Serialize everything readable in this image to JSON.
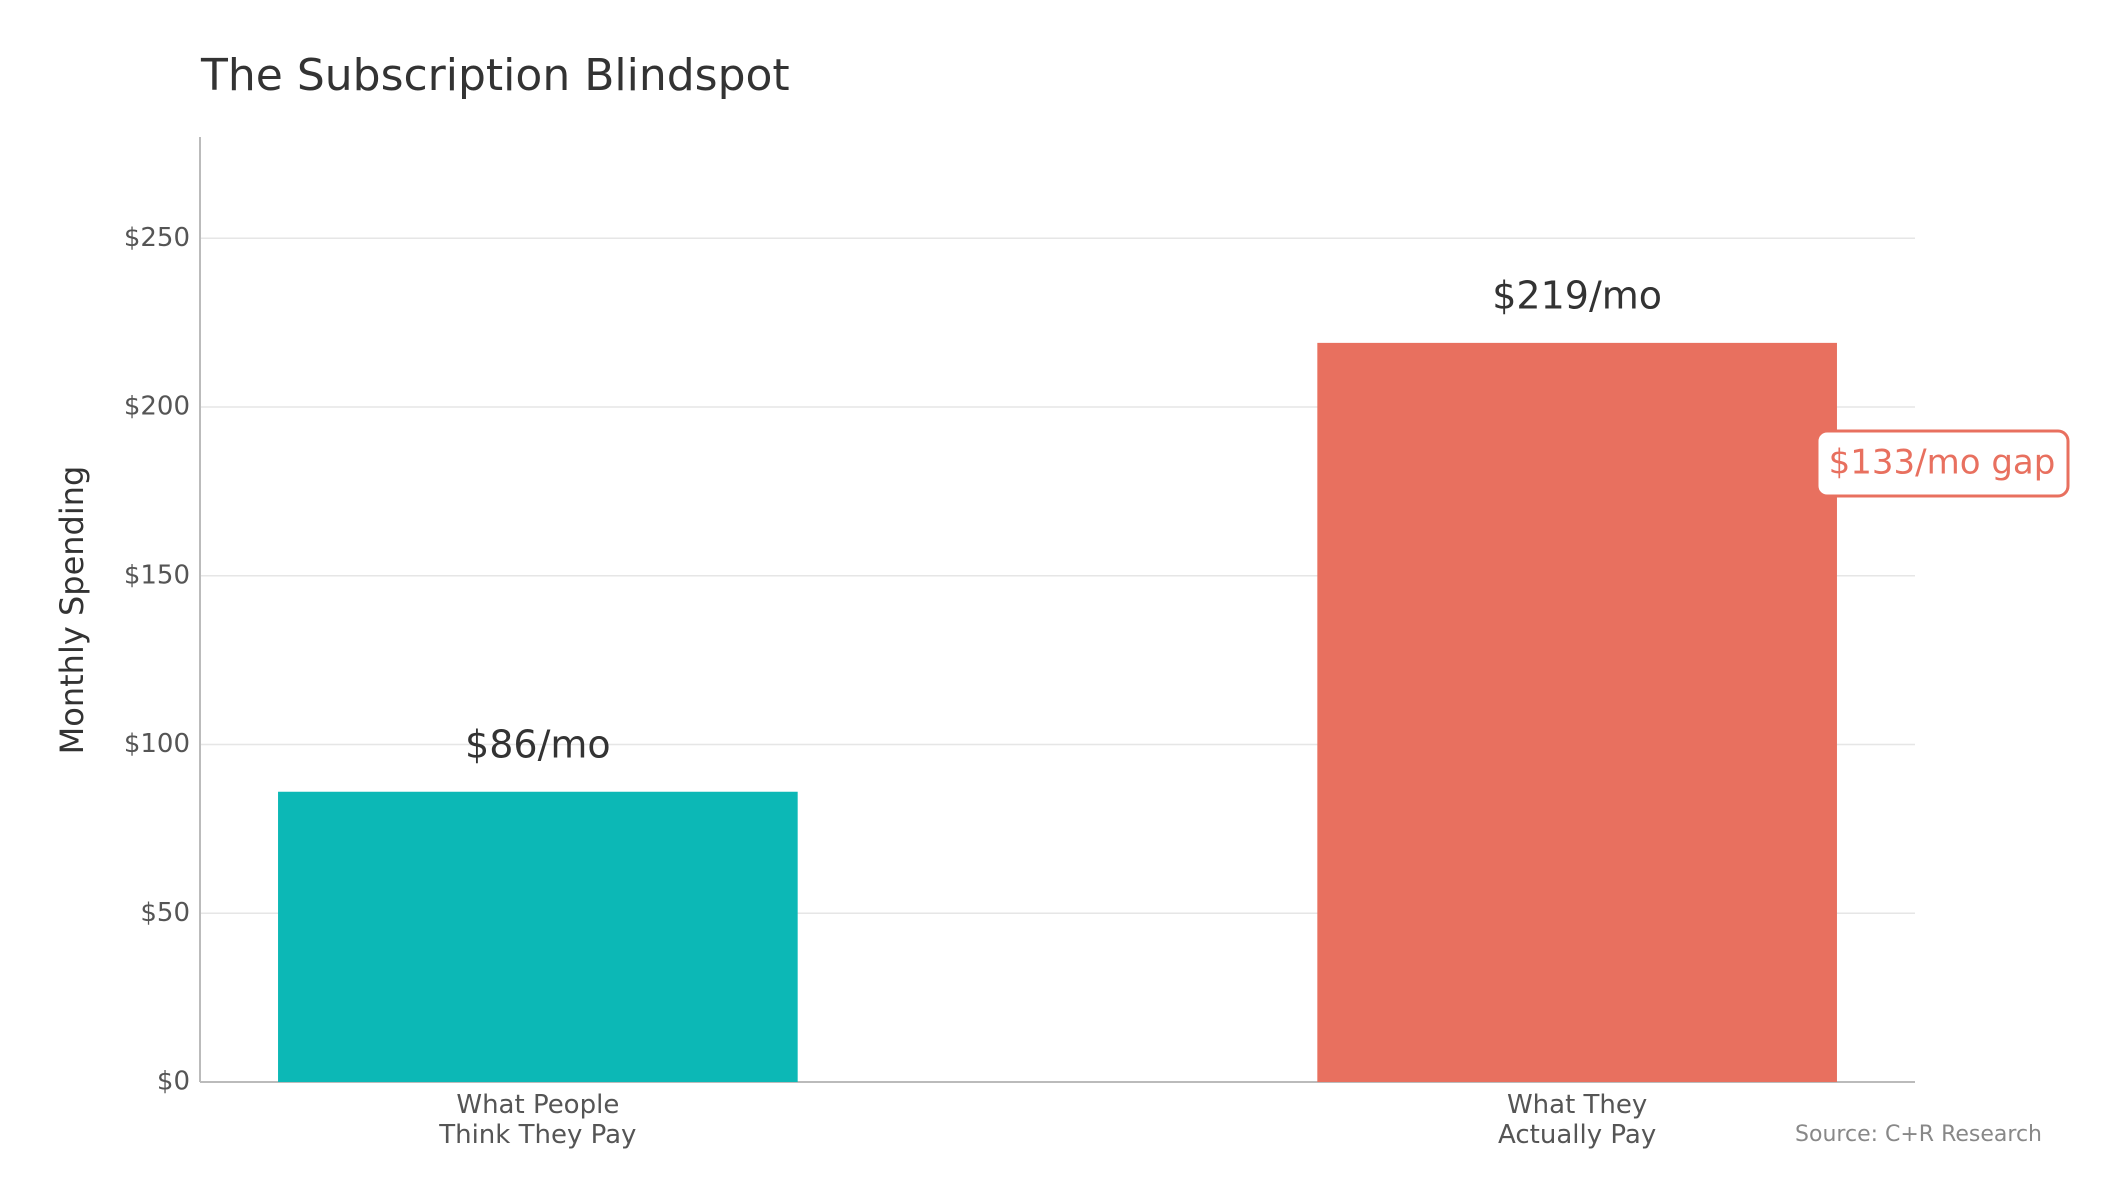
{
  "chart_data": {
    "type": "bar",
    "title": "The Subscription Blindspot",
    "y_label": "Monthly Spending",
    "categories": [
      "What People\nThink They Pay",
      "What They\nActually Pay"
    ],
    "values": [
      86,
      219
    ],
    "value_labels": [
      "$86/mo",
      "$219/mo"
    ],
    "colors": [
      "#0cb8b6",
      "#e8705f"
    ],
    "ylim": [
      0,
      280
    ],
    "yticks": [
      {
        "value": 0,
        "label": "$0"
      },
      {
        "value": 50,
        "label": "$50"
      },
      {
        "value": 100,
        "label": "$100"
      },
      {
        "value": 150,
        "label": "$150"
      },
      {
        "value": 200,
        "label": "$200"
      },
      {
        "value": 250,
        "label": "$250"
      }
    ],
    "grid": true,
    "annotation": "$133/mo gap",
    "source": "Source: C+R Research"
  }
}
